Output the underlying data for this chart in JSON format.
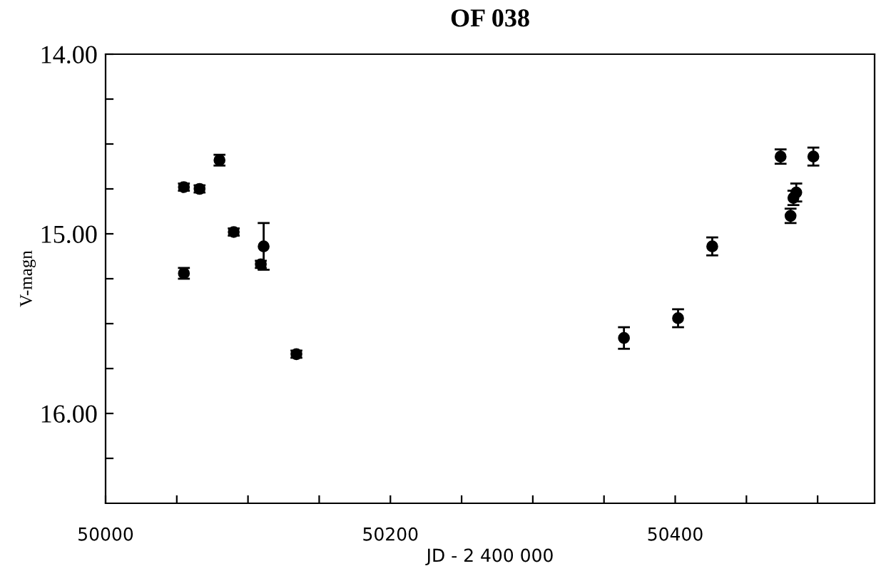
{
  "chart_data": {
    "type": "scatter",
    "title": "OF 038",
    "xlabel": "JD - 2 400 000",
    "ylabel": "V-magn",
    "x": [
      50055,
      50055,
      50066,
      50080,
      50090,
      50109,
      50111,
      50134,
      50364,
      50402,
      50426,
      50474,
      50497,
      50481,
      50483,
      50485
    ],
    "values": [
      14.74,
      15.22,
      14.75,
      14.59,
      14.99,
      15.17,
      15.07,
      15.67,
      15.58,
      15.47,
      15.07,
      14.57,
      14.57,
      14.9,
      14.8,
      14.77
    ],
    "errors": [
      0.02,
      0.03,
      0.02,
      0.03,
      0.02,
      0.02,
      0.13,
      0.02,
      0.06,
      0.05,
      0.05,
      0.04,
      0.05,
      0.04,
      0.04,
      0.05
    ],
    "color": "#000000",
    "marker": "circle",
    "xlim": [
      50000,
      50540
    ],
    "xticks": [
      50000,
      {
        "value": 50050,
        "label": null
      },
      {
        "value": 50100,
        "label": null
      },
      {
        "value": 50150,
        "label": null
      },
      50200,
      {
        "value": 50250,
        "label": null
      },
      {
        "value": 50300,
        "label": null
      },
      {
        "value": 50350,
        "label": null
      },
      50400,
      {
        "value": 50450,
        "label": null
      },
      {
        "value": 50500,
        "label": null
      }
    ],
    "ylim": [
      16.5,
      14.0
    ],
    "yticks": [
      {
        "value": 14.0,
        "label": "14.00"
      },
      {
        "value": 14.25,
        "label": null
      },
      {
        "value": 14.5,
        "label": null
      },
      {
        "value": 14.75,
        "label": null
      },
      {
        "value": 15.0,
        "label": "15.00"
      },
      {
        "value": 15.25,
        "label": null
      },
      {
        "value": 15.5,
        "label": null
      },
      {
        "value": 15.75,
        "label": null
      },
      {
        "value": 16.0,
        "label": "16.00"
      },
      {
        "value": 16.25,
        "label": null
      }
    ],
    "grid": false,
    "legend": false
  }
}
